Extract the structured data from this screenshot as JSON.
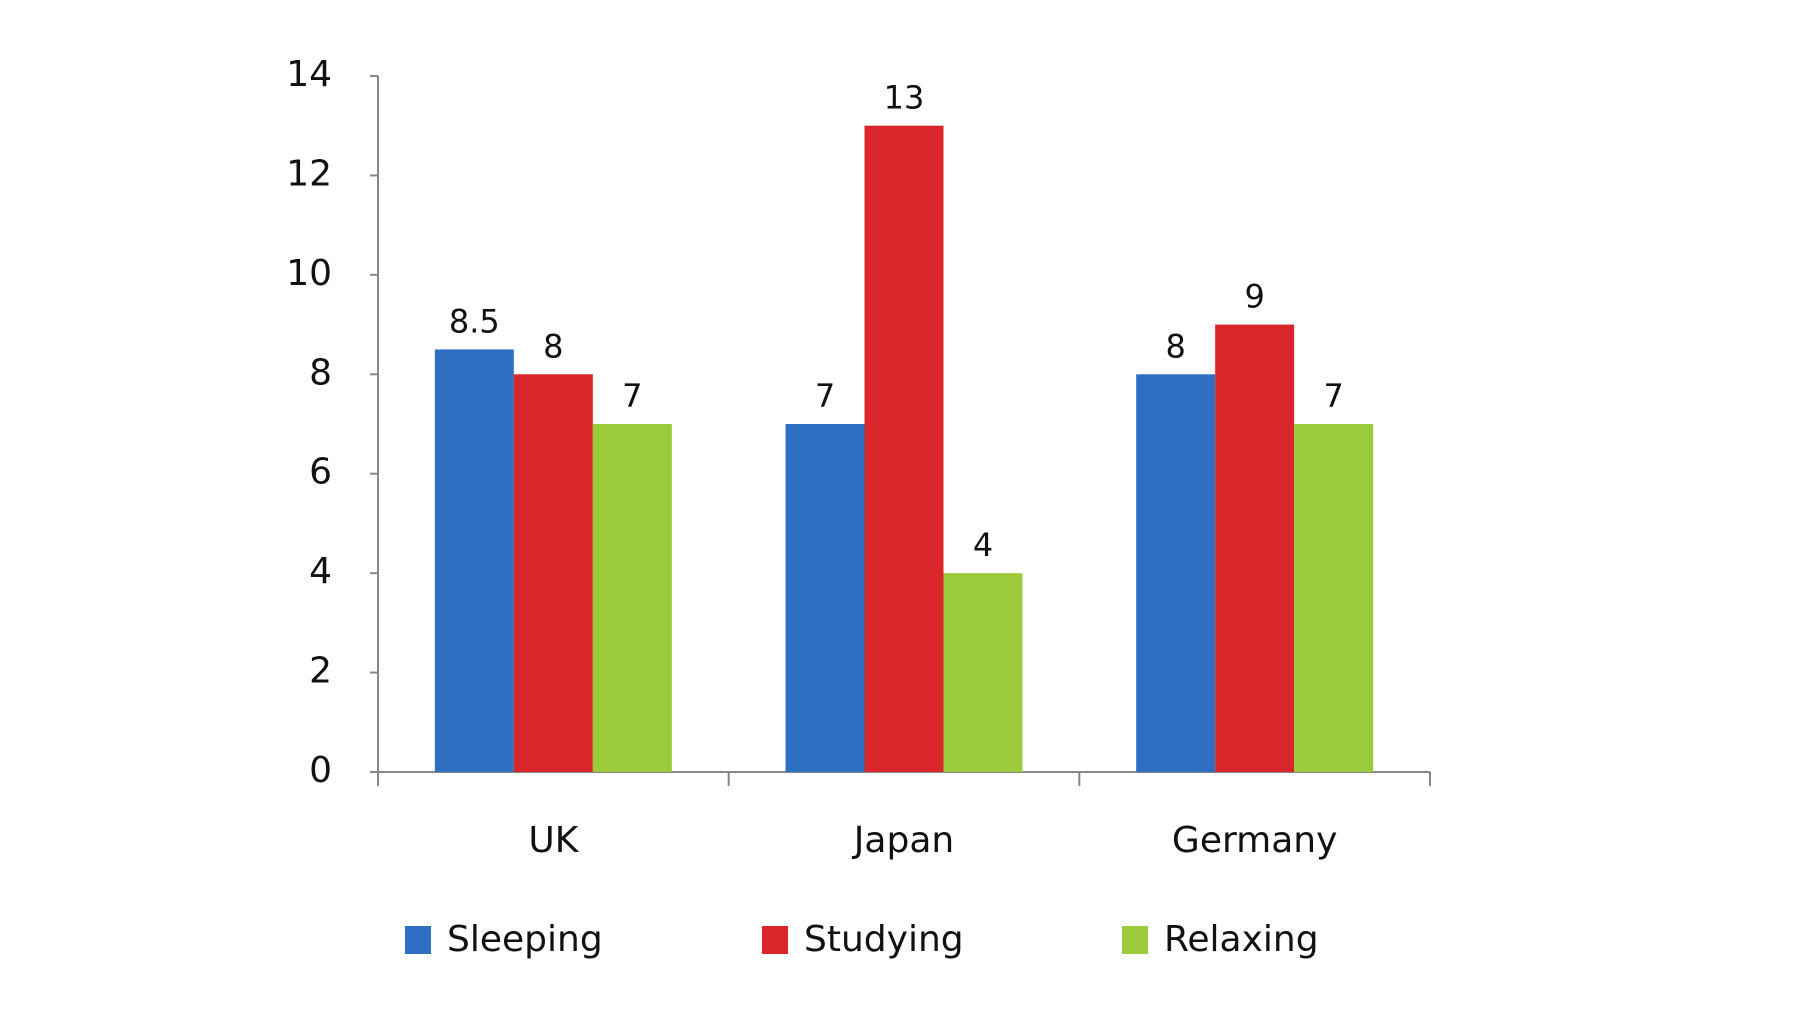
{
  "chart_data": {
    "type": "bar",
    "categories": [
      "UK",
      "Japan",
      "Germany"
    ],
    "series": [
      {
        "name": "Sleeping",
        "color": "#2f6fc2",
        "values": [
          8.5,
          7,
          8
        ]
      },
      {
        "name": "Studying",
        "color": "#d8262a",
        "values": [
          8,
          13,
          9
        ]
      },
      {
        "name": "Relaxing",
        "color": "#9bcb3b",
        "values": [
          7,
          4,
          7
        ]
      }
    ],
    "ylim": [
      0,
      14
    ],
    "yticks": [
      0,
      2,
      4,
      6,
      8,
      10,
      12,
      14
    ],
    "grid": false,
    "legend": "bottom"
  }
}
